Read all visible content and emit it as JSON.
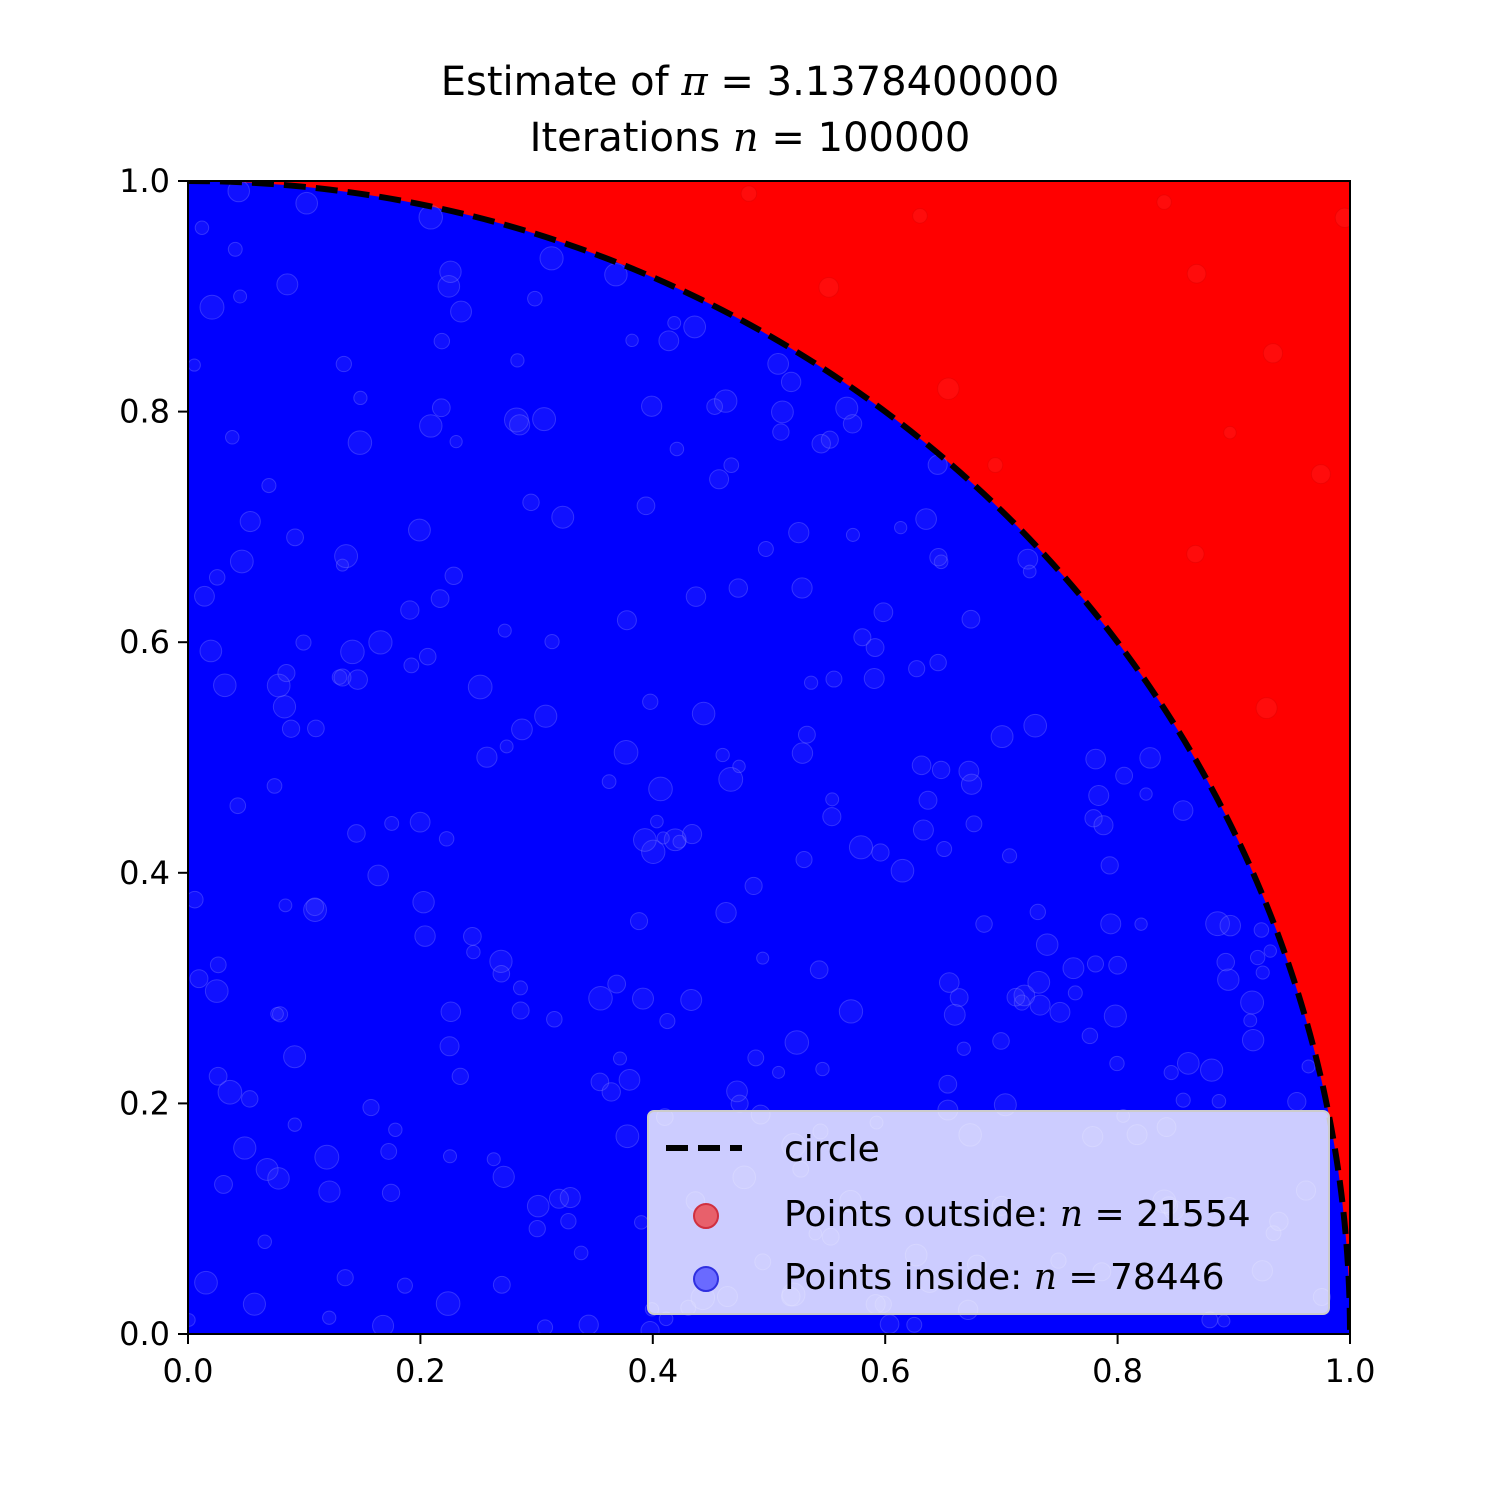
{
  "chart_data": {
    "type": "scatter",
    "title": {
      "line1_prefix": "Estimate of ",
      "line1_symbol": "π",
      "line1_value": " = 3.1378400000",
      "line2_prefix": "Iterations ",
      "line2_symbol": "n",
      "line2_value": " = 100000"
    },
    "xlim": [
      0.0,
      1.0
    ],
    "ylim": [
      0.0,
      1.0
    ],
    "x_ticks": [
      "0.0",
      "0.2",
      "0.4",
      "0.6",
      "0.8",
      "1.0"
    ],
    "y_ticks": [
      "0.0",
      "0.2",
      "0.4",
      "0.6",
      "0.8",
      "1.0"
    ],
    "grid": false,
    "iterations": 100000,
    "pi_estimate": 3.13784,
    "curve": {
      "name": "circle",
      "equation": "x^2 + y^2 = 1",
      "style": "dashed",
      "color": "#000000"
    },
    "series": [
      {
        "name_prefix": "Points outside: ",
        "name_symbol": "n",
        "name_value": " = 21554",
        "count": 21554,
        "region": "x^2 + y^2 > 1",
        "color": "#ff0000"
      },
      {
        "name_prefix": "Points inside: ",
        "name_symbol": "n",
        "name_value": " = 78446",
        "count": 78446,
        "region": "x^2 + y^2 <= 1",
        "color": "#0000ff"
      }
    ],
    "legend": {
      "placement": "lower-right",
      "entries": [
        "circle",
        "Points outside: n = 21554",
        "Points inside: n = 78446"
      ]
    }
  }
}
